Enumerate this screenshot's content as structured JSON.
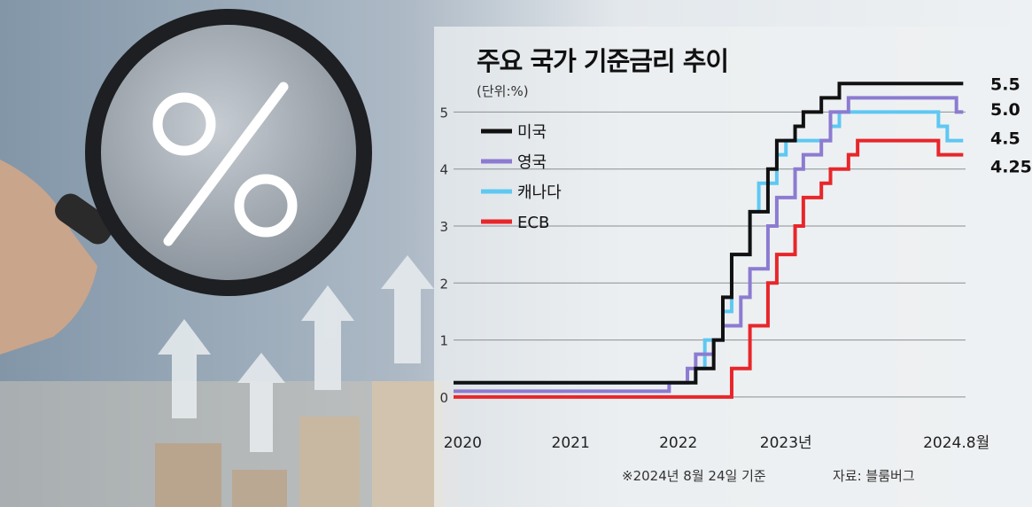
{
  "chart_data": {
    "type": "line",
    "title": "주요 국가 기준금리 추이",
    "unit_label": "(단위:%)",
    "ylim": [
      -0.5,
      5.8
    ],
    "yticks": [
      0,
      1,
      2,
      3,
      4,
      5
    ],
    "xlim": [
      "2019-12-01",
      "2024-09-01"
    ],
    "xticks": [
      {
        "date": "2020-01-01",
        "label": "2020"
      },
      {
        "date": "2021-01-01",
        "label": "2021"
      },
      {
        "date": "2022-01-01",
        "label": "2022"
      },
      {
        "date": "2023-01-01",
        "label": "2023년"
      },
      {
        "date": "2024-08-01",
        "label": "2024.8월"
      }
    ],
    "grid": "horizontal",
    "legend_position": "top-left",
    "series": [
      {
        "name": "미국",
        "color": "#111111",
        "end_label": "5.5",
        "points": [
          [
            "2020-03-01",
            0.25
          ],
          [
            "2022-03-01",
            0.5
          ],
          [
            "2022-05-01",
            1.0
          ],
          [
            "2022-06-01",
            1.75
          ],
          [
            "2022-07-01",
            2.5
          ],
          [
            "2022-09-01",
            3.25
          ],
          [
            "2022-11-01",
            4.0
          ],
          [
            "2022-12-01",
            4.5
          ],
          [
            "2023-02-01",
            4.75
          ],
          [
            "2023-03-01",
            5.0
          ],
          [
            "2023-05-01",
            5.25
          ],
          [
            "2023-07-01",
            5.5
          ],
          [
            "2024-08-24",
            5.5
          ]
        ]
      },
      {
        "name": "영국",
        "color": "#8c7bd1",
        "end_label": "5.0",
        "points": [
          [
            "2020-03-01",
            0.1
          ],
          [
            "2021-12-01",
            0.25
          ],
          [
            "2022-02-01",
            0.5
          ],
          [
            "2022-03-01",
            0.75
          ],
          [
            "2022-05-01",
            1.0
          ],
          [
            "2022-06-01",
            1.25
          ],
          [
            "2022-08-01",
            1.75
          ],
          [
            "2022-09-01",
            2.25
          ],
          [
            "2022-11-01",
            3.0
          ],
          [
            "2022-12-01",
            3.5
          ],
          [
            "2023-02-01",
            4.0
          ],
          [
            "2023-03-01",
            4.25
          ],
          [
            "2023-05-01",
            4.5
          ],
          [
            "2023-06-01",
            5.0
          ],
          [
            "2023-08-01",
            5.25
          ],
          [
            "2024-08-01",
            5.0
          ],
          [
            "2024-08-24",
            5.0
          ]
        ]
      },
      {
        "name": "캐나다",
        "color": "#5ec8f2",
        "end_label": "4.5",
        "points": [
          [
            "2020-03-01",
            0.25
          ],
          [
            "2022-03-01",
            0.5
          ],
          [
            "2022-04-01",
            1.0
          ],
          [
            "2022-06-01",
            1.5
          ],
          [
            "2022-07-01",
            2.5
          ],
          [
            "2022-09-01",
            3.25
          ],
          [
            "2022-10-01",
            3.75
          ],
          [
            "2022-12-01",
            4.25
          ],
          [
            "2023-01-01",
            4.5
          ],
          [
            "2023-06-01",
            4.75
          ],
          [
            "2023-07-01",
            5.0
          ],
          [
            "2024-06-01",
            4.75
          ],
          [
            "2024-07-01",
            4.5
          ],
          [
            "2024-08-24",
            4.5
          ]
        ]
      },
      {
        "name": "ECB",
        "color": "#e8262a",
        "end_label": "4.25",
        "points": [
          [
            "2020-03-01",
            0.0
          ],
          [
            "2022-07-01",
            0.5
          ],
          [
            "2022-09-01",
            1.25
          ],
          [
            "2022-11-01",
            2.0
          ],
          [
            "2022-12-01",
            2.5
          ],
          [
            "2023-02-01",
            3.0
          ],
          [
            "2023-03-01",
            3.5
          ],
          [
            "2023-05-01",
            3.75
          ],
          [
            "2023-06-01",
            4.0
          ],
          [
            "2023-08-01",
            4.25
          ],
          [
            "2023-09-01",
            4.5
          ],
          [
            "2024-06-01",
            4.25
          ],
          [
            "2024-08-24",
            4.25
          ]
        ]
      }
    ],
    "note": "※2024년 8월 24일 기준",
    "source": "자료: 블룸버그"
  }
}
